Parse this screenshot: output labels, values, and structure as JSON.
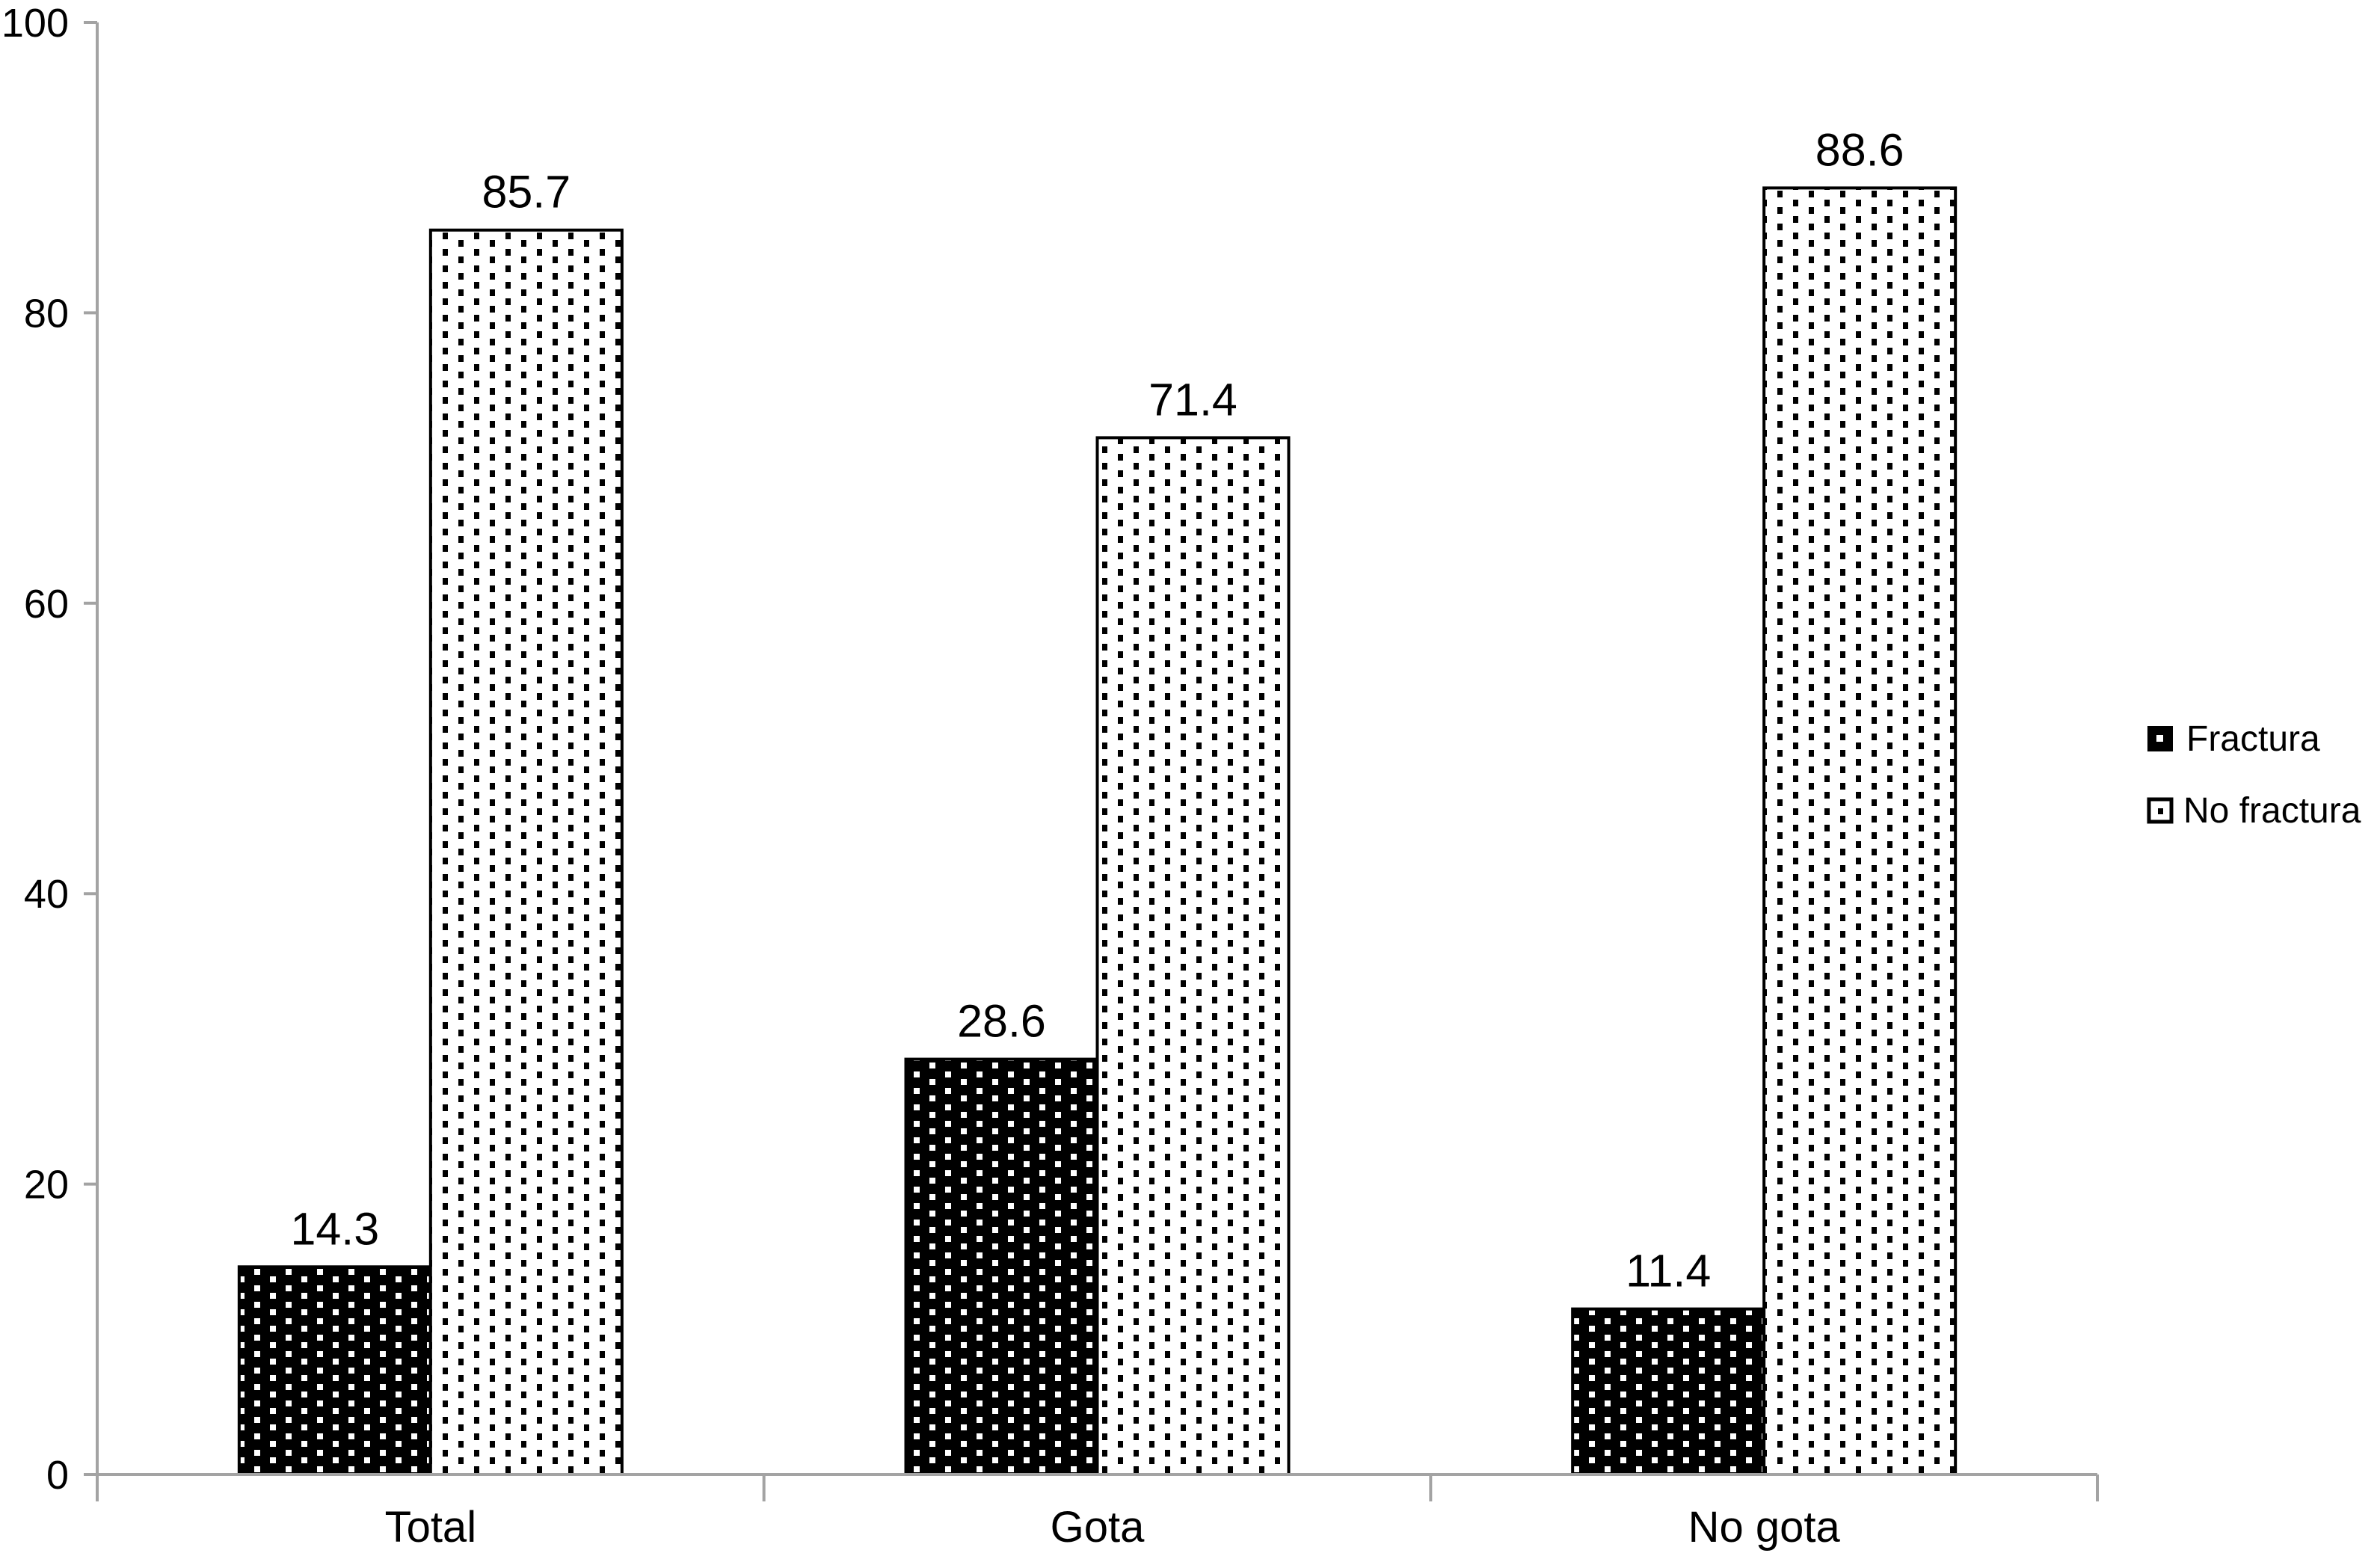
{
  "chart_data": {
    "type": "bar",
    "title": "",
    "categories": [
      "Total",
      "Gota",
      "No gota"
    ],
    "series": [
      {
        "name": "Fractura",
        "pattern": "white-dots-on-black",
        "fill": "#000000",
        "dot_color": "#ffffff",
        "values": [
          14.3,
          28.6,
          11.4
        ]
      },
      {
        "name": "No fractura",
        "pattern": "black-dots-on-white",
        "fill": "#ffffff",
        "dot_color": "#000000",
        "values": [
          85.7,
          71.4,
          88.6
        ]
      }
    ],
    "value_labels_shown": true,
    "value_label_decimals": 1,
    "xlabel": "",
    "ylabel": "",
    "ylim": [
      0,
      100
    ],
    "yticks": [
      0,
      20,
      40,
      60,
      80,
      100
    ],
    "grid": false,
    "legend_position": "right"
  },
  "colors": {
    "background": "#ffffff",
    "axis": "#a3a3a3",
    "text": "#000000",
    "bar_border": "#000000"
  }
}
